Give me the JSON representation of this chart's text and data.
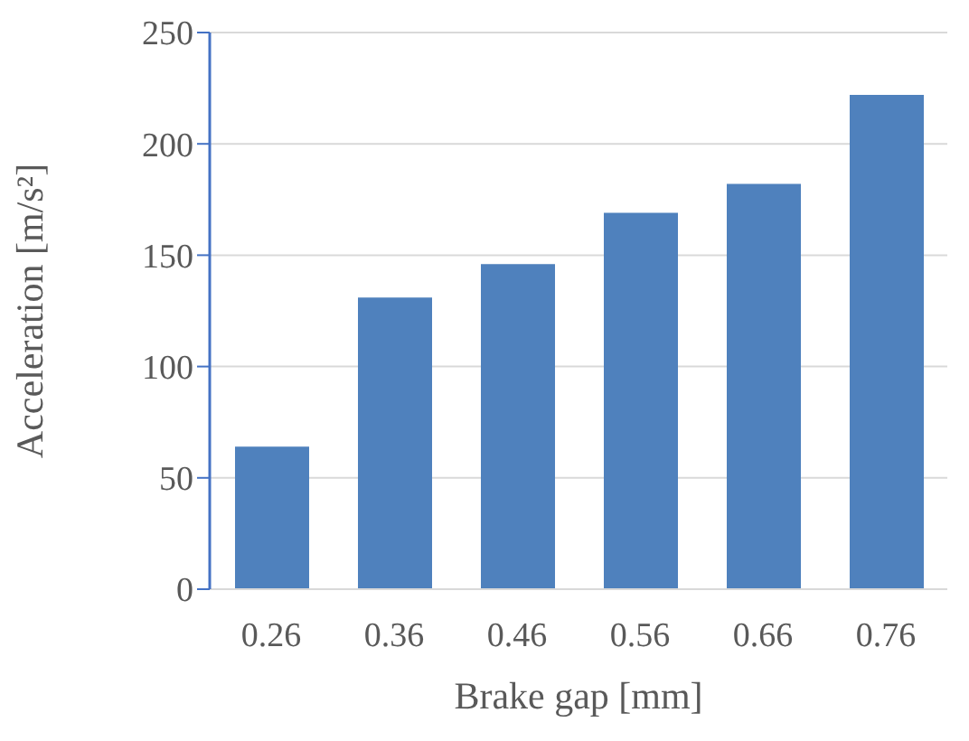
{
  "chart_data": {
    "type": "bar",
    "xlabel": "Brake gap [mm]",
    "ylabel": "Acceleration [m/s²]",
    "categories": [
      "0.26",
      "0.36",
      "0.46",
      "0.56",
      "0.66",
      "0.76"
    ],
    "values": [
      64,
      131,
      146,
      169,
      182,
      222
    ],
    "color": "#4f81bd",
    "ylim": [
      0,
      250
    ],
    "yticks": [
      0,
      50,
      100,
      150,
      200,
      250
    ],
    "grid": "y"
  }
}
